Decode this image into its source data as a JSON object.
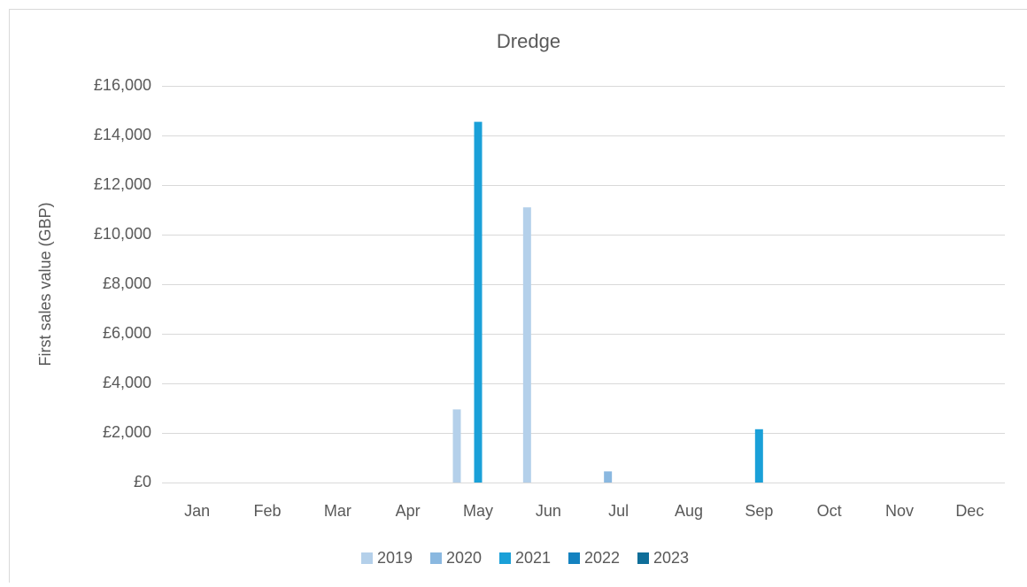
{
  "chart_data": {
    "type": "bar",
    "title": "Dredge",
    "ylabel": "First sales value (GBP)",
    "categories": [
      "Jan",
      "Feb",
      "Mar",
      "Apr",
      "May",
      "Jun",
      "Jul",
      "Aug",
      "Sep",
      "Oct",
      "Nov",
      "Dec"
    ],
    "series": [
      {
        "name": "2019",
        "color": "#b4d0ea",
        "values": [
          0,
          0,
          0,
          0,
          2950,
          11100,
          0,
          0,
          0,
          0,
          0,
          0
        ]
      },
      {
        "name": "2020",
        "color": "#8ab8e0",
        "values": [
          0,
          0,
          0,
          0,
          0,
          0,
          450,
          0,
          0,
          0,
          0,
          0
        ]
      },
      {
        "name": "2021",
        "color": "#1aa0d8",
        "values": [
          0,
          0,
          0,
          0,
          14550,
          0,
          0,
          0,
          2150,
          0,
          0,
          0
        ]
      },
      {
        "name": "2022",
        "color": "#1482c0",
        "values": [
          0,
          0,
          0,
          0,
          0,
          0,
          0,
          0,
          0,
          0,
          0,
          0
        ]
      },
      {
        "name": "2023",
        "color": "#0f6e99",
        "values": [
          0,
          0,
          0,
          0,
          0,
          0,
          0,
          0,
          0,
          0,
          0,
          0
        ]
      }
    ],
    "ylim": [
      0,
      16000
    ],
    "yticks": [
      {
        "value": 0,
        "label": "£0"
      },
      {
        "value": 2000,
        "label": "£2,000"
      },
      {
        "value": 4000,
        "label": "£4,000"
      },
      {
        "value": 6000,
        "label": "£6,000"
      },
      {
        "value": 8000,
        "label": "£8,000"
      },
      {
        "value": 10000,
        "label": "£10,000"
      },
      {
        "value": 12000,
        "label": "£12,000"
      },
      {
        "value": 14000,
        "label": "£14,000"
      },
      {
        "value": 16000,
        "label": "£16,000"
      }
    ],
    "grid": true,
    "legend": "bottom"
  }
}
